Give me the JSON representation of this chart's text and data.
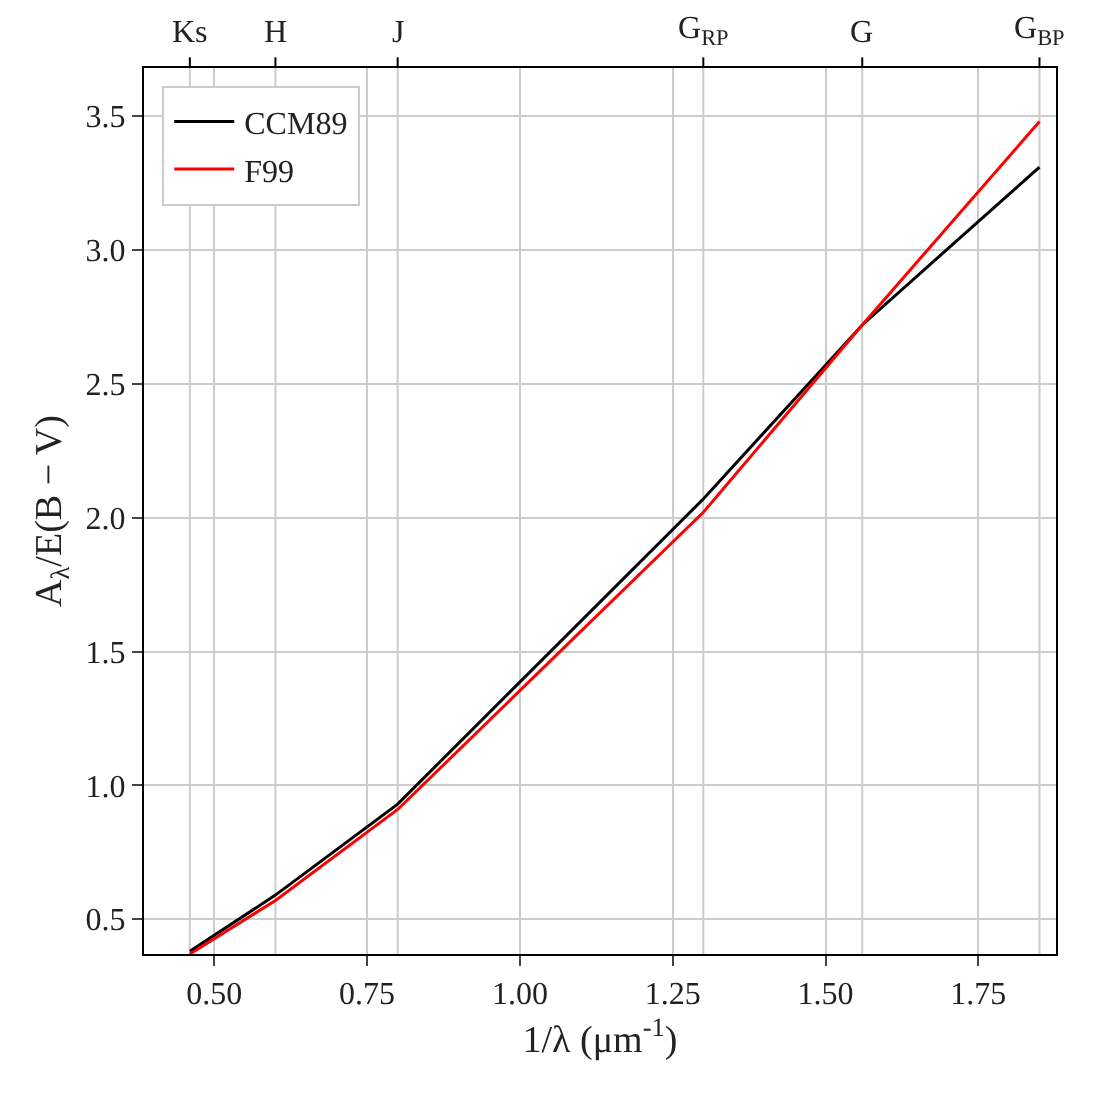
{
  "chart_data": {
    "type": "line",
    "xlabel": "1/λ (μm$^{-1}$)",
    "ylabel": "A$_{λ}$/E(B − V)",
    "xlim": [
      0.385,
      1.877
    ],
    "xticks": [
      {
        "value": 0.5,
        "label": "0.50"
      },
      {
        "value": 0.75,
        "label": "0.75"
      },
      {
        "value": 1.0,
        "label": "1.00"
      },
      {
        "value": 1.25,
        "label": "1.25"
      },
      {
        "value": 1.5,
        "label": "1.50"
      },
      {
        "value": 1.75,
        "label": "1.75"
      }
    ],
    "ylim": [
      0.37,
      3.68
    ],
    "yticks": [
      0.5,
      {
        "value": 1.0,
        "label": "1.0"
      },
      1.5,
      {
        "value": 2.0,
        "label": "2.0"
      },
      2.5,
      {
        "value": 3.0,
        "label": "3.0"
      },
      3.5
    ],
    "ref_lines": [
      {
        "axis": "x",
        "value": 0.46,
        "label": "Ks",
        "color": "#cccccc"
      },
      {
        "axis": "x",
        "value": 0.6,
        "label": "H",
        "color": "#cccccc"
      },
      {
        "axis": "x",
        "value": 0.8,
        "label": "J",
        "color": "#cccccc"
      },
      {
        "axis": "x",
        "value": 1.3,
        "label": "G$_{RP}$",
        "color": "#cccccc"
      },
      {
        "axis": "x",
        "value": 1.56,
        "label": "G",
        "color": "#cccccc"
      },
      {
        "axis": "x",
        "value": 1.85,
        "label": "G$_{BP}$",
        "color": "#cccccc"
      }
    ],
    "x": [
      0.46,
      0.6,
      0.8,
      1.3,
      1.56,
      1.85
    ],
    "series": [
      {
        "name": "CCM89",
        "color": "#000000",
        "values": [
          0.38,
          0.59,
          0.93,
          2.07,
          2.72,
          3.31
        ]
      },
      {
        "name": "F99",
        "color": "#ff0000",
        "values": [
          0.37,
          0.57,
          0.91,
          2.02,
          2.72,
          3.48
        ]
      }
    ],
    "grid": true,
    "legend": "top left",
    "marker": "none",
    "line_style": "solid"
  }
}
